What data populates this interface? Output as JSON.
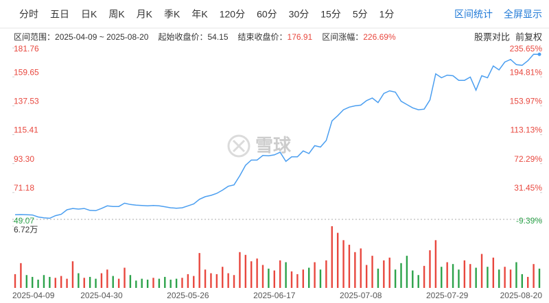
{
  "tabs": [
    "分时",
    "五日",
    "日K",
    "周K",
    "月K",
    "季K",
    "年K",
    "120分",
    "60分",
    "30分",
    "15分",
    "5分",
    "1分"
  ],
  "actions": [
    "区间统计",
    "全屏显示"
  ],
  "range_info": [
    {
      "label": "区间范围：",
      "text": "2025-04-09 ~ 2025-08-20"
    },
    {
      "label": "起始收盘价：",
      "text": "54.15"
    },
    {
      "label": "结束收盘价：",
      "text": "176.91"
    },
    {
      "label": "区间涨幅：",
      "text": "226.69%"
    }
  ],
  "tools": [
    "股票对比",
    "前复权"
  ],
  "chart_data": {
    "type": "line",
    "watermark": "雪球",
    "base_price": 54.15,
    "up_color": "#e8473e",
    "down_color": "#2ca24a",
    "categories": [
      "2025-04-09",
      null,
      null,
      null,
      null,
      null,
      null,
      null,
      null,
      null,
      null,
      null,
      null,
      null,
      null,
      "2025-04-30",
      null,
      null,
      null,
      null,
      null,
      null,
      null,
      null,
      null,
      null,
      null,
      null,
      null,
      null,
      "2025-05-26",
      null,
      null,
      null,
      null,
      null,
      null,
      null,
      null,
      null,
      null,
      null,
      null,
      null,
      null,
      "2025-06-17",
      null,
      null,
      null,
      null,
      null,
      null,
      null,
      null,
      null,
      null,
      null,
      null,
      null,
      null,
      "2025-07-08",
      null,
      null,
      null,
      null,
      null,
      null,
      null,
      null,
      null,
      null,
      null,
      null,
      null,
      null,
      "2025-07-29",
      null,
      null,
      null,
      null,
      null,
      null,
      null,
      null,
      null,
      null,
      null,
      null,
      null,
      null,
      null,
      "2025-08-20"
    ],
    "series": [
      {
        "color": "#4a9ef0",
        "values": [
          54.15,
          54.3,
          54.2,
          54.0,
          52.5,
          51.8,
          51.5,
          53.5,
          54.5,
          58,
          59,
          58.5,
          59,
          57.5,
          57.3,
          59,
          61,
          60.5,
          60.5,
          63,
          62,
          61.5,
          61.3,
          61,
          61.3,
          61,
          60.3,
          59.5,
          59.2,
          59.5,
          61,
          62.5,
          66,
          68,
          69,
          70.5,
          73,
          76,
          77,
          84,
          92,
          96,
          96,
          99.5,
          99.3,
          100,
          102,
          95,
          98.5,
          98.5,
          103,
          101,
          107,
          106,
          111,
          126,
          130,
          134.5,
          136.5,
          137.5,
          138,
          141.5,
          143.5,
          140,
          147,
          149,
          148,
          141,
          138.5,
          136,
          134.5,
          135,
          142,
          162,
          159,
          161,
          160.5,
          157,
          157,
          159.5,
          149.5,
          160.5,
          159,
          168,
          165,
          171,
          173,
          169,
          168.5,
          172,
          177,
          176.91
        ]
      }
    ],
    "ylim": [
      49.07,
      181.76
    ],
    "yticks": [
      49.07,
      71.18,
      {
        "value": 93.3,
        "label": "93.30"
      },
      115.41,
      137.53,
      159.65,
      181.76
    ],
    "y2lim": [
      -9.39,
      235.65
    ],
    "y2ticks": [
      {
        "value": -9.39,
        "label": "-9.39%"
      },
      {
        "value": 31.45,
        "label": "31.45%"
      },
      {
        "value": 72.29,
        "label": "72.29%"
      },
      {
        "value": 113.13,
        "label": "113.13%"
      },
      {
        "value": 153.97,
        "label": "153.97%"
      },
      {
        "value": 194.81,
        "label": "194.81%"
      },
      {
        "value": 235.65,
        "label": "235.65%"
      }
    ],
    "volume": {
      "values": [
        1.5,
        2.7,
        1.4,
        1.2,
        0.9,
        1.4,
        1.2,
        1.1,
        1.3,
        1.0,
        2.9,
        1.6,
        1.1,
        1.2,
        1.0,
        1.6,
        2.0,
        1.3,
        1.0,
        2.2,
        1.4,
        0.8,
        1.0,
        0.9,
        1.1,
        1.0,
        1.2,
        0.9,
        1.0,
        1.1,
        1.5,
        1.3,
        3.8,
        2.0,
        1.6,
        1.5,
        2.3,
        1.6,
        1.4,
        3.9,
        3.6,
        2.9,
        3.2,
        2.5,
        2.1,
        1.9,
        3.0,
        2.8,
        1.8,
        1.5,
        2.0,
        2.2,
        2.8,
        2.0,
        3.0,
        6.72,
        6.0,
        5.2,
        4.7,
        3.9,
        4.3,
        2.5,
        3.5,
        2.1,
        3.0,
        3.3,
        2.0,
        2.7,
        3.5,
        1.9,
        1.4,
        2.4,
        4.1,
        5.2,
        2.3,
        2.8,
        2.6,
        2.0,
        3.0,
        2.6,
        2.2,
        3.7,
        2.3,
        3.3,
        2.0,
        2.3,
        2.0,
        2.8,
        1.5,
        1.2,
        2.6,
        2.1
      ],
      "ylim": [
        0,
        6.72
      ],
      "yticks": [
        {
          "value": 6.72,
          "label": "6.72万"
        }
      ]
    }
  }
}
